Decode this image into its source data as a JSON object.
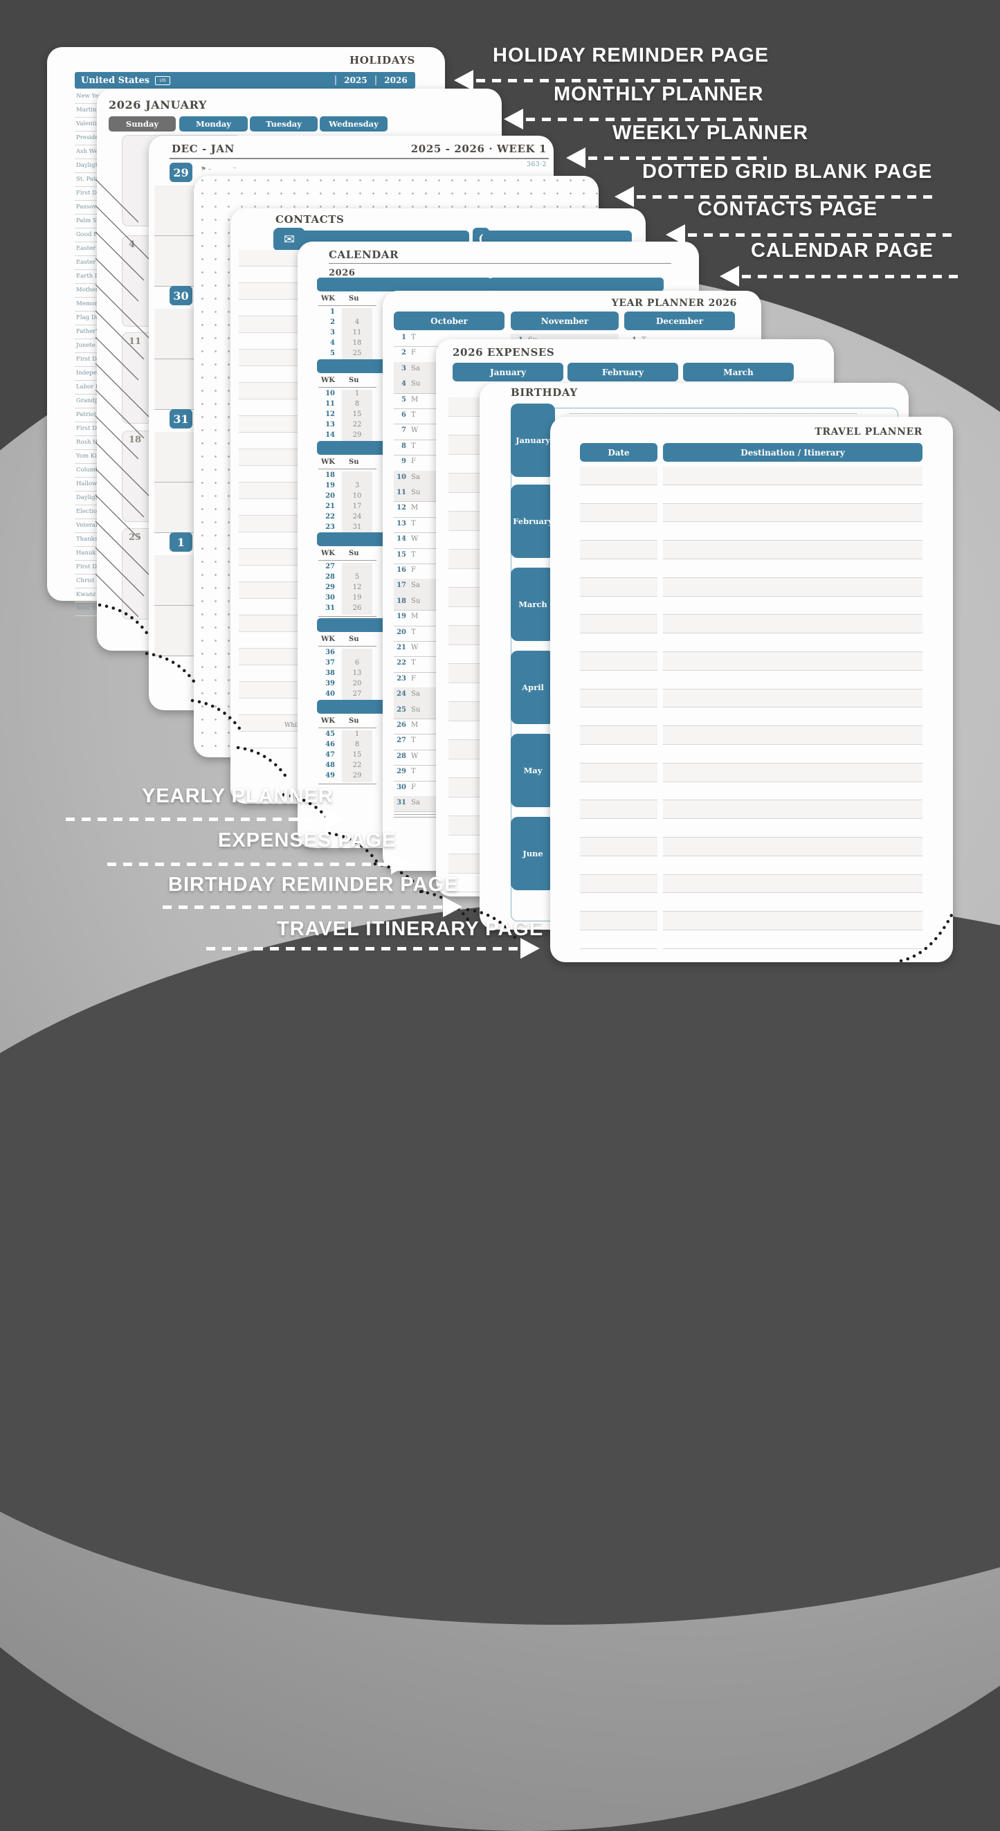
{
  "colors": {
    "teal": "#3e7fa1",
    "sunday_gray": "#6f6f6f",
    "ink": "#4c4944",
    "page_bg": "#fdfdfd",
    "background": "#474747"
  },
  "labels": {
    "right": [
      {
        "text": "HOLIDAY REMINDER PAGE"
      },
      {
        "text": "MONTHLY PLANNER"
      },
      {
        "text": "WEEKLY PLANNER"
      },
      {
        "text": "DOTTED GRID BLANK PAGE"
      },
      {
        "text": "CONTACTS PAGE"
      },
      {
        "text": "CALENDAR PAGE"
      }
    ],
    "left": [
      {
        "text": "YEARLY PLANNER"
      },
      {
        "text": "EXPENSES PAGE"
      },
      {
        "text": "BIRTHDAY REMINDER PAGE"
      },
      {
        "text": "TRAVEL ITINERARY PAGE"
      }
    ]
  },
  "pages": {
    "holidays": {
      "title": "HOLIDAYS",
      "country": "United States",
      "badge": "US",
      "years": [
        "2025",
        "2026"
      ],
      "items": [
        "New Year'",
        "Martin",
        "Valenti",
        "Preside",
        "Ash We",
        "Dayligh",
        "St. Patr",
        "First D",
        "Passov",
        "Palm Su",
        "Good F",
        "Easter S",
        "Easter",
        "Earth D",
        "Mother",
        "Memor",
        "Flag Da",
        "Father'",
        "Junete",
        "First D",
        "Indepe",
        "Labor D",
        "Grandp",
        "Patriot",
        "First D",
        "Rosh H",
        "Yom Ki",
        "Columb",
        "Hallow",
        "Dayligh",
        "Electio",
        "Veteran",
        "Thanks",
        "Hanuk",
        "First D",
        "Christ",
        "Kwanz",
        "New Ye"
      ]
    },
    "monthly": {
      "title": "2026 JANUARY",
      "day_headers": [
        "Sunday",
        "Monday",
        "Tuesday",
        "Wednesday"
      ],
      "sunday_dates": [
        "",
        "4",
        "11",
        "18",
        "25"
      ]
    },
    "weekly": {
      "title_left": "DEC - JAN",
      "title_right": "2025 - 2026 · WEEK 1",
      "day_counter": "363·2",
      "days": [
        "29",
        "30",
        "31",
        "1"
      ]
    },
    "dotgrid": {},
    "contacts": {
      "title": "CONTACTS",
      "icons": {
        "mail": "✉",
        "phone": "("
      },
      "note": "Whil"
    },
    "calendar": {
      "title": "CALENDAR",
      "year": "2026",
      "col_headers": [
        "WK",
        "Su"
      ],
      "blocks": [
        {
          "wk": [
            "1",
            "2",
            "3",
            "4",
            "5"
          ],
          "su": [
            "",
            "4",
            "11",
            "18",
            "25"
          ]
        },
        {
          "wk": [
            "10",
            "11",
            "12",
            "13",
            "14"
          ],
          "su": [
            "1",
            "8",
            "15",
            "22",
            "29"
          ]
        },
        {
          "wk": [
            "18",
            "19",
            "20",
            "21",
            "22",
            "23"
          ],
          "su": [
            "",
            "3",
            "10",
            "17",
            "24",
            "31"
          ]
        },
        {
          "wk": [
            "27",
            "28",
            "29",
            "30",
            "31"
          ],
          "su": [
            "",
            "5",
            "12",
            "19",
            "26"
          ]
        },
        {
          "wk": [
            "36",
            "37",
            "38",
            "39",
            "40"
          ],
          "su": [
            "",
            "6",
            "13",
            "20",
            "27"
          ]
        },
        {
          "wk": [
            "45",
            "46",
            "47",
            "48",
            "49"
          ],
          "su": [
            "1",
            "8",
            "15",
            "22",
            "29"
          ]
        }
      ]
    },
    "yearplanner": {
      "title": "YEAR PLANNER 2026",
      "months": [
        "October",
        "November",
        "December"
      ],
      "october_days": [
        "T",
        "F",
        "Sa",
        "Su",
        "M",
        "T",
        "W",
        "T",
        "F",
        "Sa",
        "Su",
        "M",
        "T",
        "W",
        "T",
        "F",
        "Sa",
        "Su",
        "M",
        "T",
        "W",
        "T",
        "F",
        "Sa",
        "Su",
        "M",
        "T",
        "W",
        "T",
        "F",
        "Sa"
      ],
      "november_first": {
        "day": "1",
        "wd": "Su"
      },
      "december_first": {
        "day": "1",
        "wd": "T"
      }
    },
    "expenses": {
      "title": "2026 EXPENSES",
      "months": [
        "January",
        "February",
        "March"
      ]
    },
    "birthday": {
      "title": "BIRTHDAY",
      "months": [
        "January",
        "February",
        "March",
        "April",
        "May",
        "June"
      ]
    },
    "travel": {
      "title": "TRAVEL PLANNER",
      "columns": [
        "Date",
        "Destination / Itinerary"
      ]
    }
  }
}
